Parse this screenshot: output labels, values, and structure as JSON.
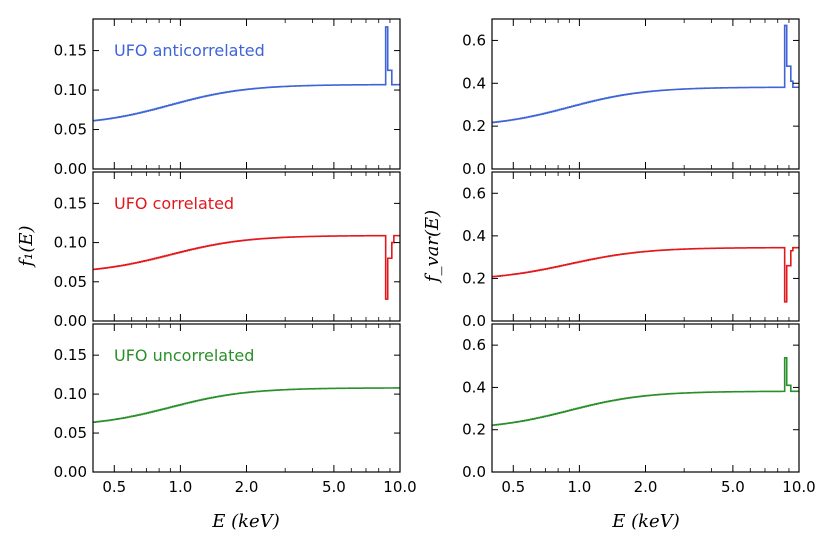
{
  "figure": {
    "xlabel": "E (keV)",
    "ylabel_left": "f₁(E)",
    "ylabel_right": "f_var(E)"
  },
  "colors": {
    "anticorrelated": "#3e64d8",
    "correlated": "#e3181c",
    "uncorrelated": "#2a8f2a"
  },
  "chart_data": [
    {
      "type": "line",
      "id": "left-top",
      "annotation": "UFO anticorrelated",
      "series_color": "anticorrelated",
      "x_scale": "log",
      "xlim": [
        0.4,
        10.0
      ],
      "ylim": [
        0.0,
        0.19
      ],
      "yticks": [
        0.0,
        0.05,
        0.1,
        0.15
      ],
      "ytick_labels": [
        "0.00",
        "0.05",
        "0.10",
        "0.15"
      ],
      "xticks": [
        0.5,
        1.0,
        2.0,
        5.0,
        10.0
      ],
      "xtick_labels": [],
      "base": {
        "low": 0.055,
        "high": 0.107,
        "center_keV": 0.9,
        "width": 0.4
      },
      "features": [
        {
          "x_start": 8.6,
          "x_end": 8.85,
          "value": 0.18
        },
        {
          "x_start": 8.85,
          "x_end": 9.1,
          "value": 0.125
        }
      ]
    },
    {
      "type": "line",
      "id": "left-middle",
      "annotation": "UFO correlated",
      "series_color": "correlated",
      "x_scale": "log",
      "xlim": [
        0.4,
        10.0
      ],
      "ylim": [
        0.0,
        0.19
      ],
      "yticks": [
        0.0,
        0.05,
        0.1,
        0.15
      ],
      "ytick_labels": [
        "0.00",
        "0.05",
        "0.10",
        "0.15"
      ],
      "xticks": [
        0.5,
        1.0,
        2.0,
        5.0,
        10.0
      ],
      "xtick_labels": [],
      "base": {
        "low": 0.06,
        "high": 0.109,
        "center_keV": 0.9,
        "width": 0.4
      },
      "features": [
        {
          "x_start": 8.6,
          "x_end": 8.85,
          "value": 0.028
        },
        {
          "x_start": 8.85,
          "x_end": 9.1,
          "value": 0.08
        },
        {
          "x_start": 9.1,
          "x_end": 9.35,
          "value": 0.1
        }
      ]
    },
    {
      "type": "line",
      "id": "left-bottom",
      "annotation": "UFO uncorrelated",
      "series_color": "uncorrelated",
      "x_scale": "log",
      "xlim": [
        0.4,
        10.0
      ],
      "ylim": [
        0.0,
        0.19
      ],
      "yticks": [
        0.0,
        0.05,
        0.1,
        0.15
      ],
      "ytick_labels": [
        "0.00",
        "0.05",
        "0.10",
        "0.15"
      ],
      "xticks": [
        0.5,
        1.0,
        2.0,
        5.0,
        10.0
      ],
      "xtick_labels": [
        "0.5",
        "1.0",
        "2.0",
        "5.0",
        "10.0"
      ],
      "base": {
        "low": 0.058,
        "high": 0.108,
        "center_keV": 0.9,
        "width": 0.4
      },
      "features": []
    },
    {
      "type": "line",
      "id": "right-top",
      "annotation": "",
      "series_color": "anticorrelated",
      "x_scale": "log",
      "xlim": [
        0.4,
        10.0
      ],
      "ylim": [
        0.0,
        0.7
      ],
      "yticks": [
        0.0,
        0.2,
        0.4,
        0.6
      ],
      "ytick_labels": [
        "0.0",
        "0.2",
        "0.4",
        "0.6"
      ],
      "xticks": [
        0.5,
        1.0,
        2.0,
        5.0,
        10.0
      ],
      "xtick_labels": [],
      "base": {
        "low": 0.195,
        "high": 0.382,
        "center_keV": 0.9,
        "width": 0.4
      },
      "features": [
        {
          "x_start": 8.6,
          "x_end": 8.85,
          "value": 0.67
        },
        {
          "x_start": 8.85,
          "x_end": 9.1,
          "value": 0.48
        },
        {
          "x_start": 9.1,
          "x_end": 9.35,
          "value": 0.41
        }
      ]
    },
    {
      "type": "line",
      "id": "right-middle",
      "annotation": "",
      "series_color": "correlated",
      "x_scale": "log",
      "xlim": [
        0.4,
        10.0
      ],
      "ylim": [
        0.0,
        0.7
      ],
      "yticks": [
        0.0,
        0.2,
        0.4,
        0.6
      ],
      "ytick_labels": [
        "0.0",
        "0.2",
        "0.4",
        "0.6"
      ],
      "xticks": [
        0.5,
        1.0,
        2.0,
        5.0,
        10.0
      ],
      "xtick_labels": [],
      "base": {
        "low": 0.19,
        "high": 0.345,
        "center_keV": 0.9,
        "width": 0.4
      },
      "features": [
        {
          "x_start": 8.6,
          "x_end": 8.85,
          "value": 0.09
        },
        {
          "x_start": 8.85,
          "x_end": 9.1,
          "value": 0.26
        },
        {
          "x_start": 9.1,
          "x_end": 9.35,
          "value": 0.33
        }
      ]
    },
    {
      "type": "line",
      "id": "right-bottom",
      "annotation": "",
      "series_color": "uncorrelated",
      "x_scale": "log",
      "xlim": [
        0.4,
        10.0
      ],
      "ylim": [
        0.0,
        0.7
      ],
      "yticks": [
        0.0,
        0.2,
        0.4,
        0.6
      ],
      "ytick_labels": [
        "0.0",
        "0.2",
        "0.4",
        "0.6"
      ],
      "xticks": [
        0.5,
        1.0,
        2.0,
        5.0,
        10.0
      ],
      "xtick_labels": [
        "0.5",
        "1.0",
        "2.0",
        "5.0",
        "10.0"
      ],
      "base": {
        "low": 0.2,
        "high": 0.382,
        "center_keV": 0.9,
        "width": 0.4
      },
      "features": [
        {
          "x_start": 8.6,
          "x_end": 8.85,
          "value": 0.54
        },
        {
          "x_start": 8.85,
          "x_end": 9.1,
          "value": 0.41
        }
      ]
    }
  ]
}
